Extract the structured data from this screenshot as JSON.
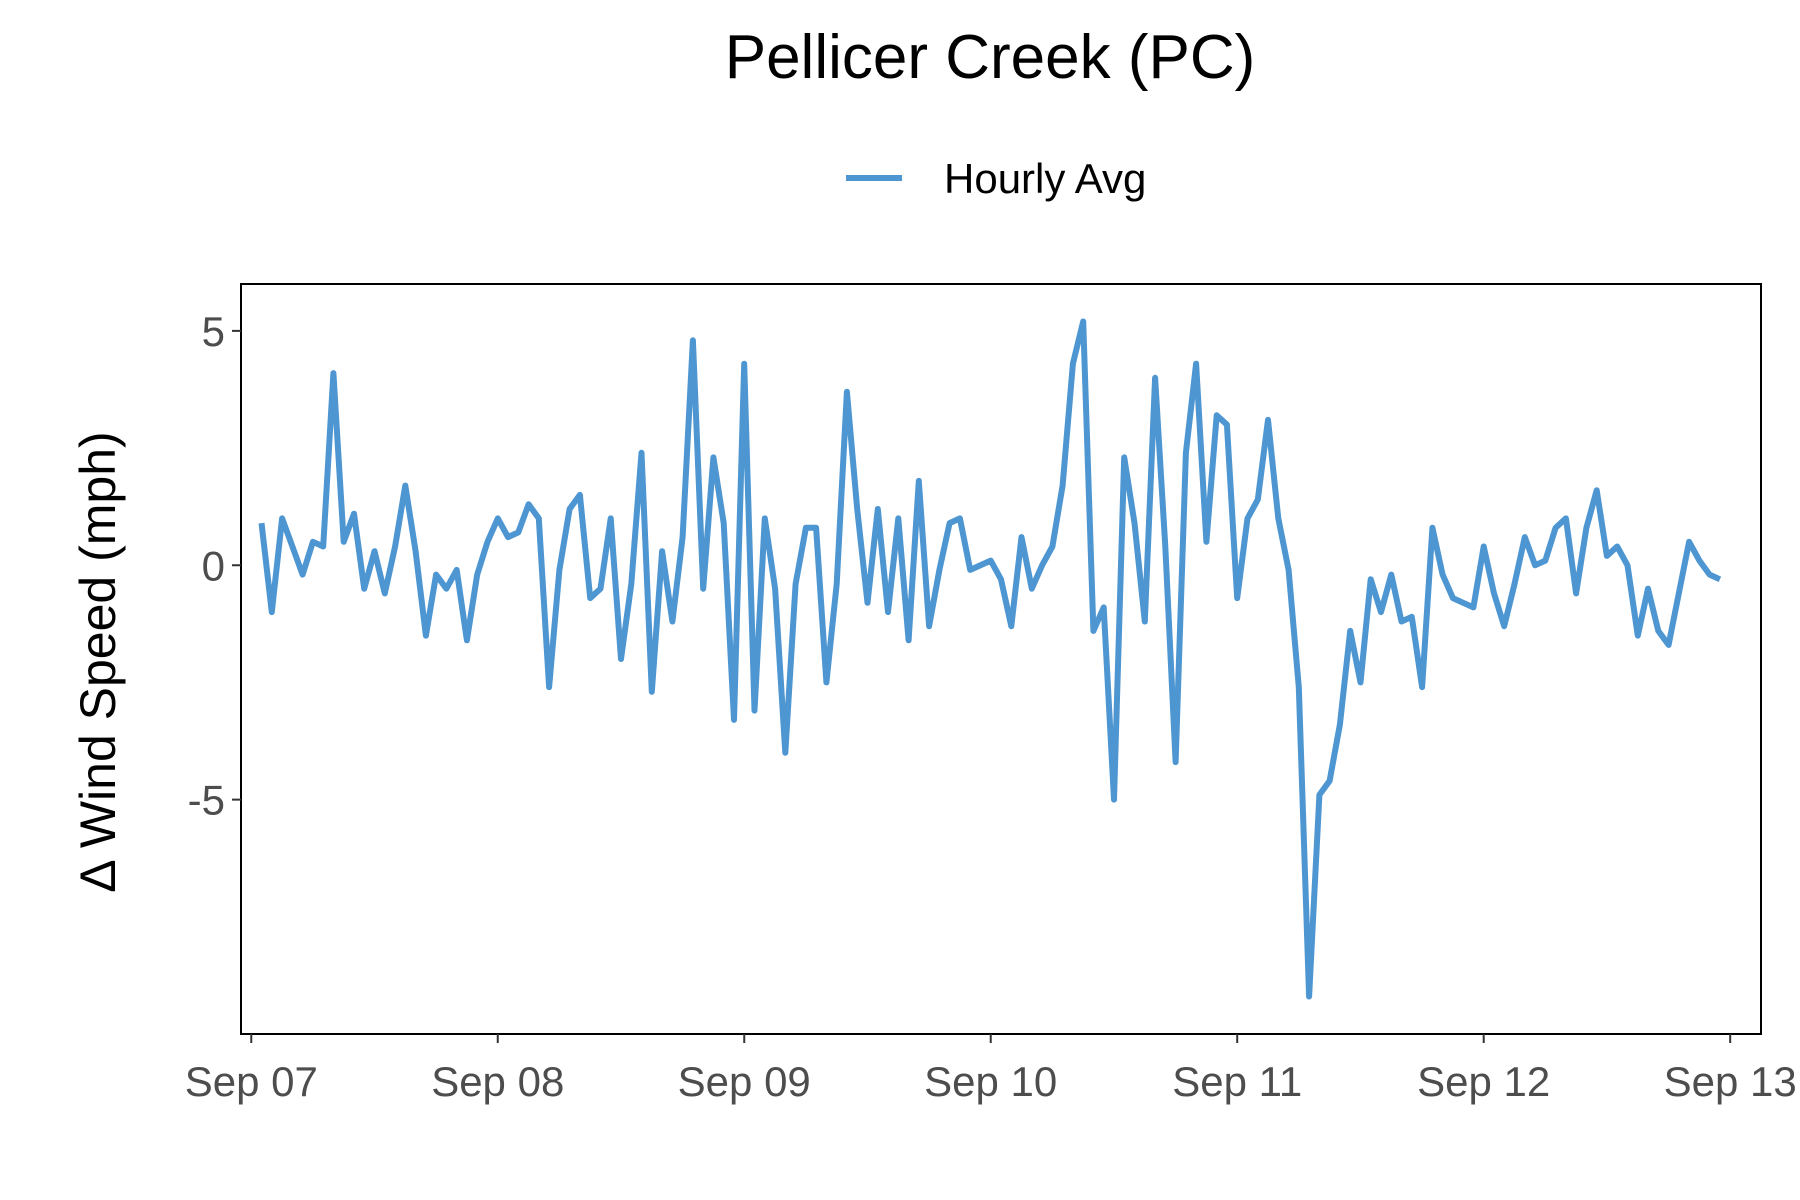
{
  "chart_data": {
    "type": "line",
    "title": "Pellicer Creek (PC)",
    "xlabel": "",
    "ylabel": "Δ Wind Speed (mph)",
    "legend": {
      "position": "top",
      "entries": [
        "Hourly Avg"
      ]
    },
    "grid": false,
    "x_tick_labels": [
      "Sep 07",
      "Sep 08",
      "Sep 09",
      "Sep 10",
      "Sep 11",
      "Sep 12",
      "Sep 13"
    ],
    "x_ticks": [
      "2000-09-07 00:00",
      "2000-09-08 00:00",
      "2000-09-09 00:00",
      "2000-09-10 00:00",
      "2000-09-11 00:00",
      "2000-09-12 00:00",
      "2000-09-13 00:00"
    ],
    "y_ticks": [
      5,
      0,
      -5
    ],
    "y_tick_labels": [
      "5",
      "0",
      "-5"
    ],
    "xlim": [
      "2000-09-06 23:00",
      "2000-09-13 03:00"
    ],
    "ylim": [
      -10.0,
      6.0
    ],
    "series": [
      {
        "name": "Hourly Avg",
        "color": "#4e96d1",
        "x": [
          "2000-09-07 01:00",
          "2000-09-07 02:00",
          "2000-09-07 03:00",
          "2000-09-07 04:00",
          "2000-09-07 05:00",
          "2000-09-07 06:00",
          "2000-09-07 07:00",
          "2000-09-07 08:00",
          "2000-09-07 09:00",
          "2000-09-07 10:00",
          "2000-09-07 11:00",
          "2000-09-07 12:00",
          "2000-09-07 13:00",
          "2000-09-07 14:00",
          "2000-09-07 15:00",
          "2000-09-07 16:00",
          "2000-09-07 17:00",
          "2000-09-07 18:00",
          "2000-09-07 19:00",
          "2000-09-07 20:00",
          "2000-09-07 21:00",
          "2000-09-07 22:00",
          "2000-09-07 23:00",
          "2000-09-08 00:00",
          "2000-09-08 01:00",
          "2000-09-08 02:00",
          "2000-09-08 03:00",
          "2000-09-08 04:00",
          "2000-09-08 05:00",
          "2000-09-08 06:00",
          "2000-09-08 07:00",
          "2000-09-08 08:00",
          "2000-09-08 09:00",
          "2000-09-08 10:00",
          "2000-09-08 11:00",
          "2000-09-08 12:00",
          "2000-09-08 13:00",
          "2000-09-08 14:00",
          "2000-09-08 15:00",
          "2000-09-08 16:00",
          "2000-09-08 17:00",
          "2000-09-08 18:00",
          "2000-09-08 19:00",
          "2000-09-08 20:00",
          "2000-09-08 21:00",
          "2000-09-08 22:00",
          "2000-09-08 23:00",
          "2000-09-09 00:00",
          "2000-09-09 01:00",
          "2000-09-09 02:00",
          "2000-09-09 03:00",
          "2000-09-09 04:00",
          "2000-09-09 05:00",
          "2000-09-09 06:00",
          "2000-09-09 07:00",
          "2000-09-09 08:00",
          "2000-09-09 09:00",
          "2000-09-09 10:00",
          "2000-09-09 11:00",
          "2000-09-09 12:00",
          "2000-09-09 13:00",
          "2000-09-09 14:00",
          "2000-09-09 15:00",
          "2000-09-09 16:00",
          "2000-09-09 17:00",
          "2000-09-09 18:00",
          "2000-09-09 19:00",
          "2000-09-09 20:00",
          "2000-09-09 21:00",
          "2000-09-09 22:00",
          "2000-09-09 23:00",
          "2000-09-10 00:00",
          "2000-09-10 01:00",
          "2000-09-10 02:00",
          "2000-09-10 03:00",
          "2000-09-10 04:00",
          "2000-09-10 05:00",
          "2000-09-10 06:00",
          "2000-09-10 07:00",
          "2000-09-10 08:00",
          "2000-09-10 09:00",
          "2000-09-10 10:00",
          "2000-09-10 11:00",
          "2000-09-10 12:00",
          "2000-09-10 13:00",
          "2000-09-10 14:00",
          "2000-09-10 15:00",
          "2000-09-10 16:00",
          "2000-09-10 17:00",
          "2000-09-10 18:00",
          "2000-09-10 19:00",
          "2000-09-10 20:00",
          "2000-09-10 21:00",
          "2000-09-10 22:00",
          "2000-09-10 23:00",
          "2000-09-11 00:00",
          "2000-09-11 01:00",
          "2000-09-11 02:00",
          "2000-09-11 03:00",
          "2000-09-11 04:00",
          "2000-09-11 05:00",
          "2000-09-11 06:00",
          "2000-09-11 07:00",
          "2000-09-11 08:00",
          "2000-09-11 09:00",
          "2000-09-11 10:00",
          "2000-09-11 11:00",
          "2000-09-11 12:00",
          "2000-09-11 13:00",
          "2000-09-11 14:00",
          "2000-09-11 15:00",
          "2000-09-11 16:00",
          "2000-09-11 17:00",
          "2000-09-11 18:00",
          "2000-09-11 19:00",
          "2000-09-11 20:00",
          "2000-09-11 21:00",
          "2000-09-11 22:00",
          "2000-09-11 23:00",
          "2000-09-12 00:00",
          "2000-09-12 01:00",
          "2000-09-12 02:00",
          "2000-09-12 03:00",
          "2000-09-12 04:00",
          "2000-09-12 05:00",
          "2000-09-12 06:00",
          "2000-09-12 07:00",
          "2000-09-12 08:00",
          "2000-09-12 09:00",
          "2000-09-12 10:00",
          "2000-09-12 11:00",
          "2000-09-12 12:00",
          "2000-09-12 13:00",
          "2000-09-12 14:00",
          "2000-09-12 15:00",
          "2000-09-12 16:00",
          "2000-09-12 17:00",
          "2000-09-12 18:00",
          "2000-09-12 19:00",
          "2000-09-12 20:00",
          "2000-09-12 21:00",
          "2000-09-12 22:00",
          "2000-09-12 23:00"
        ],
        "y": [
          0.9,
          -1.0,
          1.0,
          0.4,
          -0.2,
          0.5,
          0.4,
          4.1,
          0.5,
          1.1,
          -0.5,
          0.3,
          -0.6,
          0.4,
          1.7,
          0.3,
          -1.5,
          -0.2,
          -0.5,
          -0.1,
          -1.6,
          -0.2,
          0.5,
          1.0,
          0.6,
          0.7,
          1.3,
          1.0,
          -2.6,
          -0.1,
          1.2,
          1.5,
          -0.7,
          -0.5,
          1.0,
          -2.0,
          -0.4,
          2.4,
          -2.7,
          0.3,
          -1.2,
          0.6,
          4.8,
          -0.5,
          2.3,
          0.9,
          -3.3,
          4.3,
          -3.1,
          1.0,
          -0.5,
          -4.0,
          -0.4,
          0.8,
          0.8,
          -2.5,
          -0.4,
          3.7,
          1.2,
          -0.8,
          1.2,
          -1.0,
          1.0,
          -1.6,
          1.8,
          -1.3,
          -0.1,
          0.9,
          1.0,
          -0.1,
          0.0,
          0.1,
          -0.3,
          -1.3,
          0.6,
          -0.5,
          0.0,
          0.4,
          1.7,
          4.3,
          5.2,
          -1.4,
          -0.9,
          -5.0,
          2.3,
          0.9,
          -1.2,
          4.0,
          0.4,
          -4.2,
          2.4,
          4.3,
          0.5,
          3.2,
          3.0,
          -0.7,
          1.0,
          1.4,
          3.1,
          1.0,
          -0.1,
          -2.6,
          -9.2,
          -4.9,
          -4.6,
          -3.4,
          -1.4,
          -2.5,
          -0.3,
          -1.0,
          -0.2,
          -1.2,
          -1.1,
          -2.6,
          0.8,
          -0.2,
          -0.7,
          -0.8,
          -0.9,
          0.4,
          -0.6,
          -1.3,
          -0.4,
          0.6,
          0.0,
          0.1,
          0.8,
          1.0,
          -0.6,
          0.8,
          1.6,
          0.2,
          0.4,
          0.0,
          -1.5,
          -0.5,
          -1.4,
          -1.7,
          -0.6,
          0.5,
          0.1,
          -0.2,
          -0.3
        ]
      }
    ]
  }
}
